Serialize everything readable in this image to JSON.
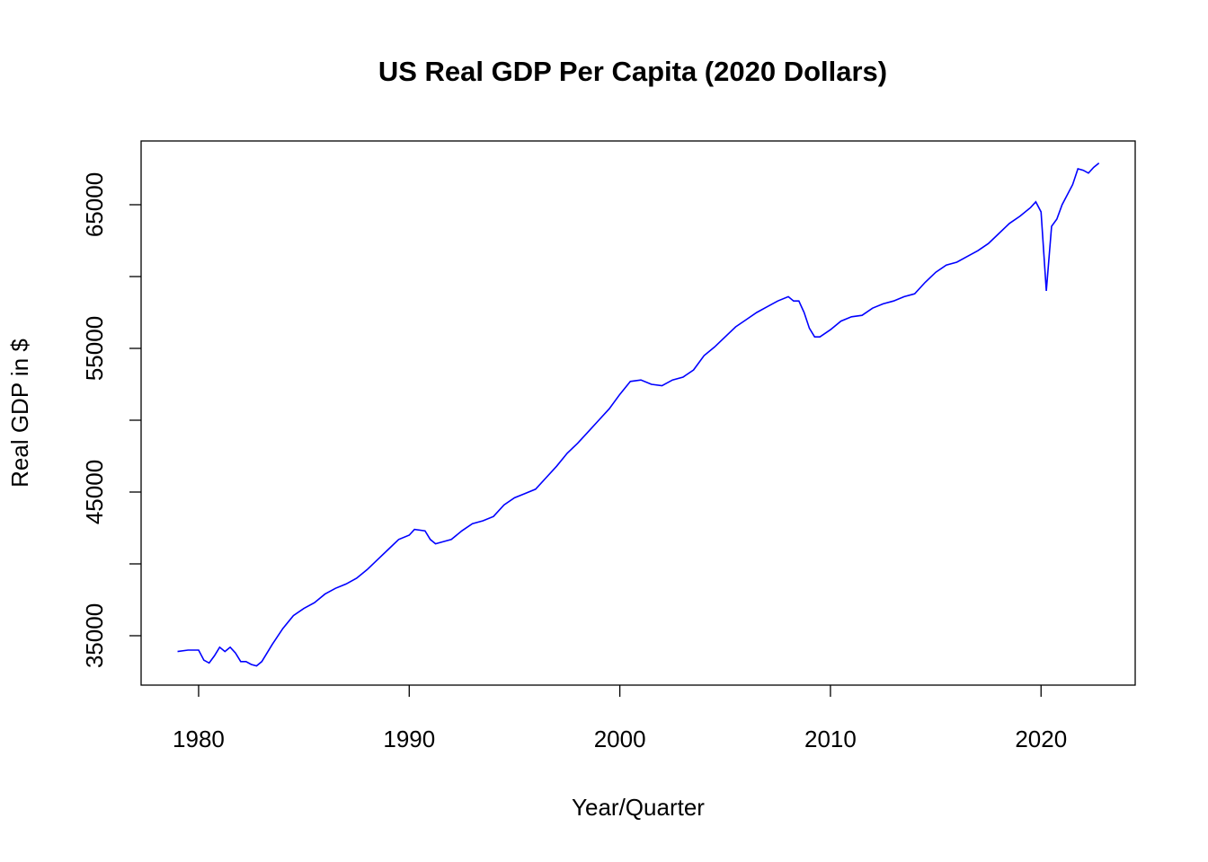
{
  "chart_data": {
    "type": "line",
    "title": "US Real GDP Per Capita (2020 Dollars)",
    "xlabel": "Year/Quarter",
    "ylabel": "Real GDP in $",
    "x": [
      1979.0,
      1979.5,
      1980.0,
      1980.25,
      1980.5,
      1980.75,
      1981.0,
      1981.25,
      1981.5,
      1981.75,
      1982.0,
      1982.25,
      1982.5,
      1982.75,
      1983.0,
      1983.25,
      1983.5,
      1984.0,
      1984.5,
      1985.0,
      1985.5,
      1986.0,
      1986.5,
      1987.0,
      1987.5,
      1988.0,
      1988.5,
      1989.0,
      1989.5,
      1990.0,
      1990.25,
      1990.75,
      1991.0,
      1991.25,
      1991.75,
      1992.0,
      1992.5,
      1993.0,
      1993.5,
      1994.0,
      1994.5,
      1995.0,
      1995.5,
      1996.0,
      1996.5,
      1997.0,
      1997.5,
      1998.0,
      1998.5,
      1999.0,
      1999.5,
      2000.0,
      2000.5,
      2001.0,
      2001.5,
      2002.0,
      2002.5,
      2003.0,
      2003.5,
      2004.0,
      2004.5,
      2005.0,
      2005.5,
      2006.0,
      2006.5,
      2007.0,
      2007.5,
      2008.0,
      2008.25,
      2008.5,
      2008.75,
      2009.0,
      2009.25,
      2009.5,
      2010.0,
      2010.5,
      2011.0,
      2011.5,
      2012.0,
      2012.5,
      2013.0,
      2013.5,
      2014.0,
      2014.5,
      2015.0,
      2015.5,
      2016.0,
      2016.5,
      2017.0,
      2017.5,
      2018.0,
      2018.5,
      2019.0,
      2019.5,
      2019.75,
      2020.0,
      2020.25,
      2020.5,
      2020.75,
      2021.0,
      2021.5,
      2021.75,
      2022.0,
      2022.25,
      2022.5,
      2022.75
    ],
    "series": [
      {
        "name": "Real GDP per capita",
        "color": "#0000ff",
        "values": [
          33900,
          34000,
          34000,
          33300,
          33100,
          33600,
          34200,
          33900,
          34200,
          33800,
          33200,
          33200,
          33000,
          32900,
          33200,
          33800,
          34400,
          35500,
          36400,
          36900,
          37300,
          37900,
          38300,
          38600,
          39000,
          39600,
          40300,
          41000,
          41700,
          42000,
          42400,
          42300,
          41700,
          41400,
          41600,
          41700,
          42300,
          42800,
          43000,
          43300,
          44100,
          44600,
          44900,
          45200,
          46000,
          46800,
          47700,
          48400,
          49200,
          50000,
          50800,
          51800,
          52700,
          52800,
          52500,
          52400,
          52800,
          53000,
          53500,
          54500,
          55100,
          55800,
          56500,
          57000,
          57500,
          57900,
          58300,
          58600,
          58300,
          58300,
          57500,
          56400,
          55800,
          55800,
          56300,
          56900,
          57200,
          57300,
          57800,
          58100,
          58300,
          58600,
          58800,
          59600,
          60300,
          60800,
          61000,
          61400,
          61800,
          62300,
          63000,
          63700,
          64200,
          64800,
          65200,
          64500,
          59000,
          63500,
          64000,
          65000,
          66400,
          67500,
          67400,
          67200,
          67600,
          67900
        ]
      }
    ],
    "xlim": [
      1977.27,
      2024.47
    ],
    "xticks": [
      1980,
      1990,
      2000,
      2010,
      2020
    ],
    "ylim": [
      31562,
      69437
    ],
    "yticks": [
      35000,
      45000,
      55000,
      65000
    ],
    "yminorticks": [
      40000,
      50000,
      60000
    ],
    "grid": false
  }
}
